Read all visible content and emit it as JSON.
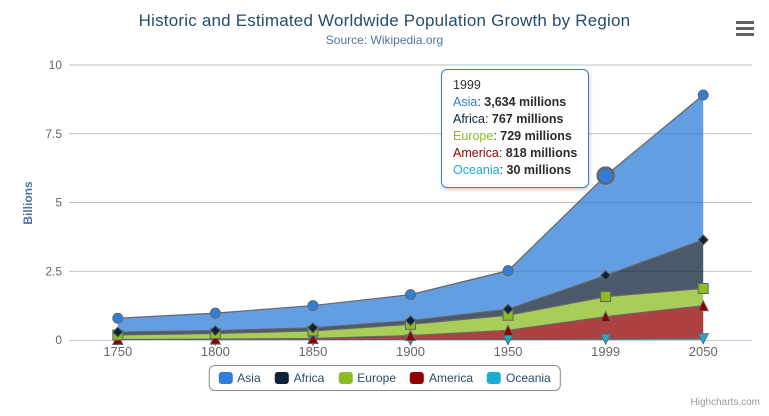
{
  "chart": {
    "title": "Historic and Estimated Worldwide Population Growth by Region",
    "subtitle": "Source: Wikipedia.org",
    "y_axis_title": "Billions",
    "credits": "Highcharts.com"
  },
  "chart_data": {
    "type": "area",
    "stacking": "normal",
    "title": "Historic and Estimated Worldwide Population Growth by Region",
    "subtitle": "Source: Wikipedia.org",
    "xlabel": "",
    "ylabel": "Billions",
    "units": "millions",
    "categories": [
      "1750",
      "1800",
      "1850",
      "1900",
      "1950",
      "1999",
      "2050"
    ],
    "series": [
      {
        "name": "Asia",
        "color": "#2f7ed8",
        "marker": "circle",
        "values": [
          502,
          635,
          809,
          947,
          1402,
          3634,
          5268
        ]
      },
      {
        "name": "Africa",
        "color": "#0d233a",
        "marker": "diamond",
        "values": [
          106,
          107,
          111,
          133,
          221,
          767,
          1766
        ]
      },
      {
        "name": "Europe",
        "color": "#8bbc21",
        "marker": "square",
        "values": [
          163,
          203,
          276,
          408,
          547,
          729,
          628
        ]
      },
      {
        "name": "America",
        "color": "#910000",
        "marker": "triangle",
        "values": [
          18,
          31,
          54,
          156,
          339,
          818,
          1201
        ]
      },
      {
        "name": "Oceania",
        "color": "#1aadce",
        "marker": "triangle-down",
        "values": [
          2,
          2,
          2,
          6,
          13,
          30,
          46
        ]
      }
    ],
    "stack_order_bottom_to_top": [
      "Oceania",
      "America",
      "Europe",
      "Africa",
      "Asia"
    ],
    "yticks": [
      "0",
      "2.5",
      "5",
      "7.5",
      "10"
    ],
    "ytick_values": [
      0,
      2.5,
      5,
      7.5,
      10
    ],
    "ylim": [
      0,
      10
    ],
    "grid": true,
    "legend_position": "bottom-center",
    "line_color": "#666666",
    "fill_opacity": 0.75,
    "grid_color": "#c0c0c0",
    "axis_line_color": "#c0d0e0",
    "axis_label_color": "#666666",
    "hover_point": {
      "series": "Asia",
      "category_index": 5
    }
  },
  "tooltip": {
    "header": "1999",
    "rows": [
      {
        "name": "Asia",
        "color": "#2f7ed8",
        "value": "3,634 millions"
      },
      {
        "name": "Africa",
        "color": "#0d233a",
        "value": "767 millions"
      },
      {
        "name": "Europe",
        "color": "#8bbc21",
        "value": "729 millions"
      },
      {
        "name": "America",
        "color": "#910000",
        "value": "818 millions"
      },
      {
        "name": "Oceania",
        "color": "#1aadce",
        "value": "30 millions"
      }
    ]
  },
  "legend": {
    "items": [
      {
        "label": "Asia",
        "color": "#2f7ed8"
      },
      {
        "label": "Africa",
        "color": "#0d233a"
      },
      {
        "label": "Europe",
        "color": "#8bbc21"
      },
      {
        "label": "America",
        "color": "#910000"
      },
      {
        "label": "Oceania",
        "color": "#1aadce"
      }
    ]
  }
}
